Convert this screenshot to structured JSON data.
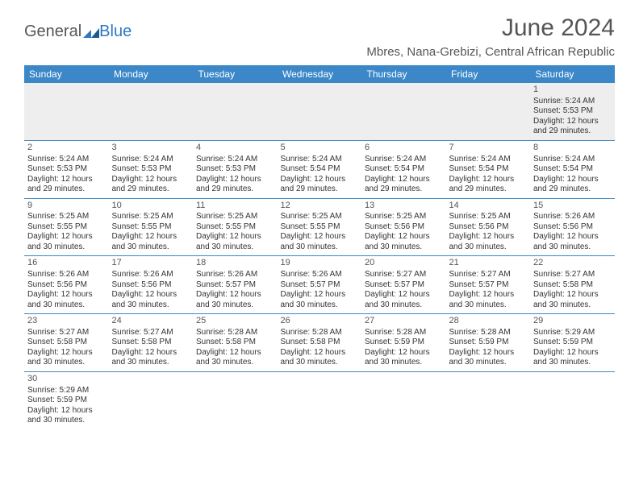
{
  "logo": {
    "text1": "General",
    "text2": "Blue"
  },
  "title": "June 2024",
  "location": "Mbres, Nana-Grebizi, Central African Republic",
  "colors": {
    "header_bg": "#3b87c8",
    "header_text": "#ffffff",
    "divider": "#3b87c8",
    "body_text": "#333333",
    "title_text": "#555555",
    "logo_accent": "#2e78c0",
    "alt_row_bg": "#eeeeee",
    "page_bg": "#ffffff"
  },
  "day_headers": [
    "Sunday",
    "Monday",
    "Tuesday",
    "Wednesday",
    "Thursday",
    "Friday",
    "Saturday"
  ],
  "weeks": [
    [
      null,
      null,
      null,
      null,
      null,
      null,
      {
        "n": "1",
        "sr": "Sunrise: 5:24 AM",
        "ss": "Sunset: 5:53 PM",
        "d1": "Daylight: 12 hours",
        "d2": "and 29 minutes."
      }
    ],
    [
      {
        "n": "2",
        "sr": "Sunrise: 5:24 AM",
        "ss": "Sunset: 5:53 PM",
        "d1": "Daylight: 12 hours",
        "d2": "and 29 minutes."
      },
      {
        "n": "3",
        "sr": "Sunrise: 5:24 AM",
        "ss": "Sunset: 5:53 PM",
        "d1": "Daylight: 12 hours",
        "d2": "and 29 minutes."
      },
      {
        "n": "4",
        "sr": "Sunrise: 5:24 AM",
        "ss": "Sunset: 5:53 PM",
        "d1": "Daylight: 12 hours",
        "d2": "and 29 minutes."
      },
      {
        "n": "5",
        "sr": "Sunrise: 5:24 AM",
        "ss": "Sunset: 5:54 PM",
        "d1": "Daylight: 12 hours",
        "d2": "and 29 minutes."
      },
      {
        "n": "6",
        "sr": "Sunrise: 5:24 AM",
        "ss": "Sunset: 5:54 PM",
        "d1": "Daylight: 12 hours",
        "d2": "and 29 minutes."
      },
      {
        "n": "7",
        "sr": "Sunrise: 5:24 AM",
        "ss": "Sunset: 5:54 PM",
        "d1": "Daylight: 12 hours",
        "d2": "and 29 minutes."
      },
      {
        "n": "8",
        "sr": "Sunrise: 5:24 AM",
        "ss": "Sunset: 5:54 PM",
        "d1": "Daylight: 12 hours",
        "d2": "and 29 minutes."
      }
    ],
    [
      {
        "n": "9",
        "sr": "Sunrise: 5:25 AM",
        "ss": "Sunset: 5:55 PM",
        "d1": "Daylight: 12 hours",
        "d2": "and 30 minutes."
      },
      {
        "n": "10",
        "sr": "Sunrise: 5:25 AM",
        "ss": "Sunset: 5:55 PM",
        "d1": "Daylight: 12 hours",
        "d2": "and 30 minutes."
      },
      {
        "n": "11",
        "sr": "Sunrise: 5:25 AM",
        "ss": "Sunset: 5:55 PM",
        "d1": "Daylight: 12 hours",
        "d2": "and 30 minutes."
      },
      {
        "n": "12",
        "sr": "Sunrise: 5:25 AM",
        "ss": "Sunset: 5:55 PM",
        "d1": "Daylight: 12 hours",
        "d2": "and 30 minutes."
      },
      {
        "n": "13",
        "sr": "Sunrise: 5:25 AM",
        "ss": "Sunset: 5:56 PM",
        "d1": "Daylight: 12 hours",
        "d2": "and 30 minutes."
      },
      {
        "n": "14",
        "sr": "Sunrise: 5:25 AM",
        "ss": "Sunset: 5:56 PM",
        "d1": "Daylight: 12 hours",
        "d2": "and 30 minutes."
      },
      {
        "n": "15",
        "sr": "Sunrise: 5:26 AM",
        "ss": "Sunset: 5:56 PM",
        "d1": "Daylight: 12 hours",
        "d2": "and 30 minutes."
      }
    ],
    [
      {
        "n": "16",
        "sr": "Sunrise: 5:26 AM",
        "ss": "Sunset: 5:56 PM",
        "d1": "Daylight: 12 hours",
        "d2": "and 30 minutes."
      },
      {
        "n": "17",
        "sr": "Sunrise: 5:26 AM",
        "ss": "Sunset: 5:56 PM",
        "d1": "Daylight: 12 hours",
        "d2": "and 30 minutes."
      },
      {
        "n": "18",
        "sr": "Sunrise: 5:26 AM",
        "ss": "Sunset: 5:57 PM",
        "d1": "Daylight: 12 hours",
        "d2": "and 30 minutes."
      },
      {
        "n": "19",
        "sr": "Sunrise: 5:26 AM",
        "ss": "Sunset: 5:57 PM",
        "d1": "Daylight: 12 hours",
        "d2": "and 30 minutes."
      },
      {
        "n": "20",
        "sr": "Sunrise: 5:27 AM",
        "ss": "Sunset: 5:57 PM",
        "d1": "Daylight: 12 hours",
        "d2": "and 30 minutes."
      },
      {
        "n": "21",
        "sr": "Sunrise: 5:27 AM",
        "ss": "Sunset: 5:57 PM",
        "d1": "Daylight: 12 hours",
        "d2": "and 30 minutes."
      },
      {
        "n": "22",
        "sr": "Sunrise: 5:27 AM",
        "ss": "Sunset: 5:58 PM",
        "d1": "Daylight: 12 hours",
        "d2": "and 30 minutes."
      }
    ],
    [
      {
        "n": "23",
        "sr": "Sunrise: 5:27 AM",
        "ss": "Sunset: 5:58 PM",
        "d1": "Daylight: 12 hours",
        "d2": "and 30 minutes."
      },
      {
        "n": "24",
        "sr": "Sunrise: 5:27 AM",
        "ss": "Sunset: 5:58 PM",
        "d1": "Daylight: 12 hours",
        "d2": "and 30 minutes."
      },
      {
        "n": "25",
        "sr": "Sunrise: 5:28 AM",
        "ss": "Sunset: 5:58 PM",
        "d1": "Daylight: 12 hours",
        "d2": "and 30 minutes."
      },
      {
        "n": "26",
        "sr": "Sunrise: 5:28 AM",
        "ss": "Sunset: 5:58 PM",
        "d1": "Daylight: 12 hours",
        "d2": "and 30 minutes."
      },
      {
        "n": "27",
        "sr": "Sunrise: 5:28 AM",
        "ss": "Sunset: 5:59 PM",
        "d1": "Daylight: 12 hours",
        "d2": "and 30 minutes."
      },
      {
        "n": "28",
        "sr": "Sunrise: 5:28 AM",
        "ss": "Sunset: 5:59 PM",
        "d1": "Daylight: 12 hours",
        "d2": "and 30 minutes."
      },
      {
        "n": "29",
        "sr": "Sunrise: 5:29 AM",
        "ss": "Sunset: 5:59 PM",
        "d1": "Daylight: 12 hours",
        "d2": "and 30 minutes."
      }
    ],
    [
      {
        "n": "30",
        "sr": "Sunrise: 5:29 AM",
        "ss": "Sunset: 5:59 PM",
        "d1": "Daylight: 12 hours",
        "d2": "and 30 minutes."
      },
      null,
      null,
      null,
      null,
      null,
      null
    ]
  ]
}
